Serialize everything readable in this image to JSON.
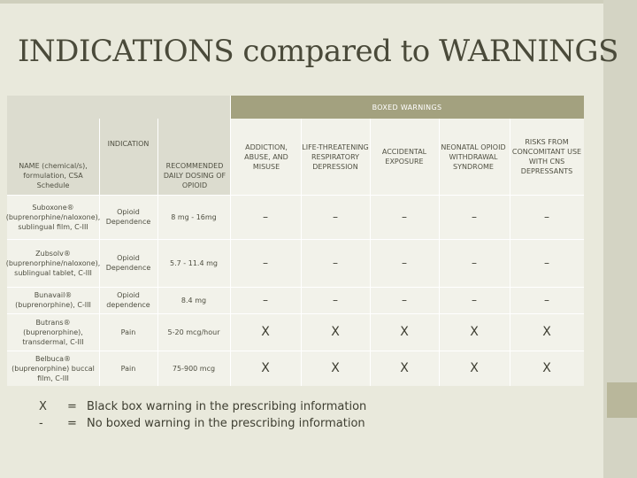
{
  "title": "INDICATIONS compared to WARNINGS",
  "table": {
    "boxed_warnings_label": "BOXED WARNINGS",
    "headers": {
      "name": "NAME (chemical/s), formulation, CSA Schedule",
      "indication": "INDICATION",
      "dosing": "RECOMMENDED DAILY DOSING OF OPIOID",
      "warnings": [
        "ADDICTION, ABUSE, AND MISUSE",
        "LIFE-THREATENING RESPIRATORY DEPRESSION",
        "ACCIDENTAL EXPOSURE",
        "NEONATAL OPIOID WITHDRAWAL SYNDROME",
        "RISKS FROM CONCOMITANT USE WITH CNS DEPRESSANTS"
      ]
    },
    "rows": [
      {
        "name": "Suboxone® (buprenorphine/naloxone), sublingual film, C-III",
        "indication": "Opioid Dependence",
        "dosing": "8 mg - 16mg",
        "marks": [
          "–",
          "–",
          "–",
          "–",
          "–"
        ]
      },
      {
        "name": "Zubsolv® (buprenorphine/naloxone), sublingual tablet, C-III",
        "indication": "Opioid Dependence",
        "dosing": "5.7 - 11.4 mg",
        "marks": [
          "–",
          "–",
          "–",
          "–",
          "–"
        ]
      },
      {
        "name": "Bunavail® (buprenorphine), C-III",
        "indication": "Opioid dependence",
        "dosing": "8.4 mg",
        "marks": [
          "–",
          "–",
          "–",
          "–",
          "–"
        ]
      },
      {
        "name": "Butrans® (buprenorphine), transdermal, C-III",
        "indication": "Pain",
        "dosing": "5-20 mcg/hour",
        "marks": [
          "X",
          "X",
          "X",
          "X",
          "X"
        ]
      },
      {
        "name": "Belbuca® (buprenorphine) buccal film, C-III",
        "indication": "Pain",
        "dosing": "75-900 mcg",
        "marks": [
          "X",
          "X",
          "X",
          "X",
          "X"
        ]
      }
    ]
  },
  "legend": [
    {
      "symbol": "X",
      "eq": "=",
      "text": "Black box warning in the prescribing information"
    },
    {
      "symbol": "-",
      "eq": "=",
      "text": "No boxed warning in the prescribing information"
    }
  ],
  "colors": {
    "background": "#e9e9dc",
    "header_accent": "#a3a17f",
    "title_text": "#4a4a3a"
  }
}
